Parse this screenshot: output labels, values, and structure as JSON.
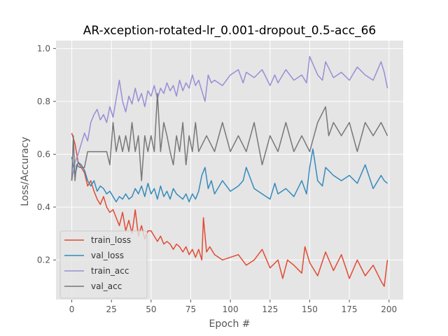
{
  "chart_data": {
    "type": "line",
    "title": "AR-xception-rotated-lr_0.001-dropout_0.5-acc_66",
    "xlabel": "Epoch #",
    "ylabel": "Loss/Accuracy",
    "xlim": [
      -9.95,
      208.95
    ],
    "ylim": [
      0.05,
      1.03
    ],
    "xticks": [
      0,
      25,
      50,
      75,
      100,
      125,
      150,
      175,
      200
    ],
    "yticks": [
      0.2,
      0.4,
      0.6,
      0.8,
      1.0
    ],
    "xtick_labels": [
      "0",
      "25",
      "50",
      "75",
      "100",
      "125",
      "150",
      "175",
      "200"
    ],
    "ytick_labels": [
      "0.2",
      "0.4",
      "0.6",
      "0.8",
      "1.0"
    ],
    "grid": true,
    "legend_position": "lower-left",
    "background": "#e5e5e5",
    "series": [
      {
        "name": "train_loss",
        "color": "#e24a33",
        "x": [
          0,
          2,
          4,
          6,
          8,
          10,
          12,
          14,
          16,
          18,
          20,
          22,
          24,
          26,
          28,
          30,
          32,
          34,
          36,
          38,
          40,
          42,
          44,
          46,
          48,
          50,
          52,
          54,
          56,
          58,
          60,
          62,
          64,
          66,
          68,
          70,
          72,
          74,
          76,
          78,
          80,
          82,
          83,
          85,
          87,
          90,
          95,
          100,
          105,
          110,
          115,
          120,
          125,
          130,
          133,
          136,
          140,
          145,
          147,
          150,
          155,
          160,
          165,
          170,
          175,
          180,
          185,
          190,
          195,
          197,
          199
        ],
        "y": [
          0.68,
          0.64,
          0.57,
          0.55,
          0.53,
          0.48,
          0.5,
          0.46,
          0.43,
          0.41,
          0.44,
          0.4,
          0.38,
          0.39,
          0.36,
          0.33,
          0.38,
          0.31,
          0.35,
          0.3,
          0.39,
          0.29,
          0.33,
          0.28,
          0.31,
          0.31,
          0.29,
          0.27,
          0.29,
          0.26,
          0.27,
          0.26,
          0.24,
          0.26,
          0.25,
          0.23,
          0.25,
          0.22,
          0.24,
          0.21,
          0.24,
          0.2,
          0.36,
          0.23,
          0.25,
          0.22,
          0.2,
          0.21,
          0.22,
          0.18,
          0.2,
          0.24,
          0.17,
          0.2,
          0.13,
          0.2,
          0.18,
          0.15,
          0.25,
          0.19,
          0.14,
          0.23,
          0.16,
          0.22,
          0.13,
          0.2,
          0.14,
          0.18,
          0.12,
          0.1,
          0.2
        ]
      },
      {
        "name": "val_loss",
        "color": "#348abd",
        "x": [
          0,
          2,
          4,
          6,
          8,
          10,
          12,
          14,
          16,
          18,
          20,
          22,
          24,
          26,
          28,
          30,
          32,
          34,
          36,
          38,
          40,
          42,
          44,
          46,
          48,
          50,
          52,
          54,
          56,
          58,
          60,
          62,
          64,
          66,
          68,
          70,
          72,
          74,
          76,
          78,
          80,
          82,
          84,
          86,
          88,
          90,
          95,
          100,
          105,
          108,
          110,
          115,
          120,
          125,
          128,
          130,
          135,
          140,
          145,
          148,
          150,
          152,
          155,
          158,
          160,
          165,
          170,
          175,
          180,
          185,
          190,
          195,
          197,
          199
        ],
        "y": [
          0.59,
          0.52,
          0.57,
          0.56,
          0.54,
          0.5,
          0.48,
          0.5,
          0.46,
          0.48,
          0.47,
          0.45,
          0.46,
          0.44,
          0.42,
          0.44,
          0.43,
          0.45,
          0.43,
          0.44,
          0.47,
          0.45,
          0.48,
          0.44,
          0.49,
          0.45,
          0.47,
          0.43,
          0.48,
          0.44,
          0.46,
          0.43,
          0.47,
          0.45,
          0.44,
          0.43,
          0.45,
          0.42,
          0.45,
          0.43,
          0.46,
          0.52,
          0.55,
          0.47,
          0.5,
          0.45,
          0.5,
          0.46,
          0.48,
          0.5,
          0.55,
          0.47,
          0.45,
          0.43,
          0.49,
          0.45,
          0.47,
          0.44,
          0.5,
          0.45,
          0.55,
          0.62,
          0.5,
          0.48,
          0.55,
          0.52,
          0.5,
          0.52,
          0.49,
          0.56,
          0.47,
          0.52,
          0.5,
          0.49
        ]
      },
      {
        "name": "train_acc",
        "color": "#988ed5",
        "x": [
          0,
          2,
          4,
          6,
          8,
          10,
          12,
          14,
          16,
          18,
          20,
          22,
          24,
          26,
          28,
          30,
          32,
          34,
          36,
          38,
          40,
          42,
          44,
          46,
          48,
          50,
          52,
          54,
          56,
          58,
          60,
          62,
          64,
          66,
          68,
          70,
          72,
          74,
          76,
          78,
          80,
          82,
          84,
          86,
          88,
          90,
          95,
          100,
          105,
          108,
          110,
          115,
          120,
          125,
          128,
          130,
          135,
          140,
          145,
          148,
          150,
          155,
          158,
          160,
          165,
          170,
          175,
          180,
          185,
          190,
          195,
          197,
          199
        ],
        "y": [
          0.5,
          0.57,
          0.6,
          0.64,
          0.68,
          0.65,
          0.72,
          0.75,
          0.77,
          0.73,
          0.75,
          0.72,
          0.78,
          0.74,
          0.81,
          0.88,
          0.8,
          0.76,
          0.82,
          0.79,
          0.85,
          0.8,
          0.83,
          0.78,
          0.84,
          0.82,
          0.86,
          0.81,
          0.85,
          0.83,
          0.87,
          0.84,
          0.86,
          0.82,
          0.88,
          0.84,
          0.87,
          0.85,
          0.9,
          0.86,
          0.88,
          0.84,
          0.8,
          0.9,
          0.87,
          0.88,
          0.86,
          0.9,
          0.92,
          0.87,
          0.91,
          0.89,
          0.92,
          0.86,
          0.9,
          0.87,
          0.92,
          0.88,
          0.9,
          0.87,
          0.97,
          0.9,
          0.88,
          0.95,
          0.89,
          0.91,
          0.88,
          0.93,
          0.9,
          0.88,
          0.95,
          0.91,
          0.85
        ]
      },
      {
        "name": "val_acc",
        "color": "#777777",
        "x": [
          0,
          1,
          2,
          3,
          5,
          8,
          10,
          12,
          15,
          18,
          20,
          22,
          24,
          26,
          28,
          30,
          32,
          34,
          36,
          38,
          40,
          42,
          44,
          46,
          48,
          50,
          52,
          54,
          56,
          58,
          60,
          62,
          64,
          66,
          68,
          70,
          72,
          74,
          76,
          78,
          80,
          85,
          90,
          95,
          100,
          105,
          110,
          115,
          120,
          125,
          130,
          135,
          140,
          145,
          150,
          155,
          160,
          162,
          165,
          170,
          175,
          180,
          185,
          190,
          195,
          199
        ],
        "y": [
          0.5,
          0.67,
          0.5,
          0.56,
          0.55,
          0.55,
          0.61,
          0.61,
          0.61,
          0.61,
          0.61,
          0.61,
          0.56,
          0.72,
          0.61,
          0.67,
          0.61,
          0.67,
          0.61,
          0.72,
          0.61,
          0.67,
          0.5,
          0.67,
          0.61,
          0.67,
          0.61,
          0.83,
          0.61,
          0.72,
          0.67,
          0.61,
          0.56,
          0.67,
          0.61,
          0.72,
          0.56,
          0.67,
          0.61,
          0.72,
          0.61,
          0.67,
          0.61,
          0.72,
          0.61,
          0.67,
          0.61,
          0.72,
          0.56,
          0.67,
          0.61,
          0.72,
          0.61,
          0.67,
          0.61,
          0.72,
          0.78,
          0.67,
          0.72,
          0.67,
          0.72,
          0.61,
          0.72,
          0.67,
          0.72,
          0.67
        ]
      }
    ]
  }
}
